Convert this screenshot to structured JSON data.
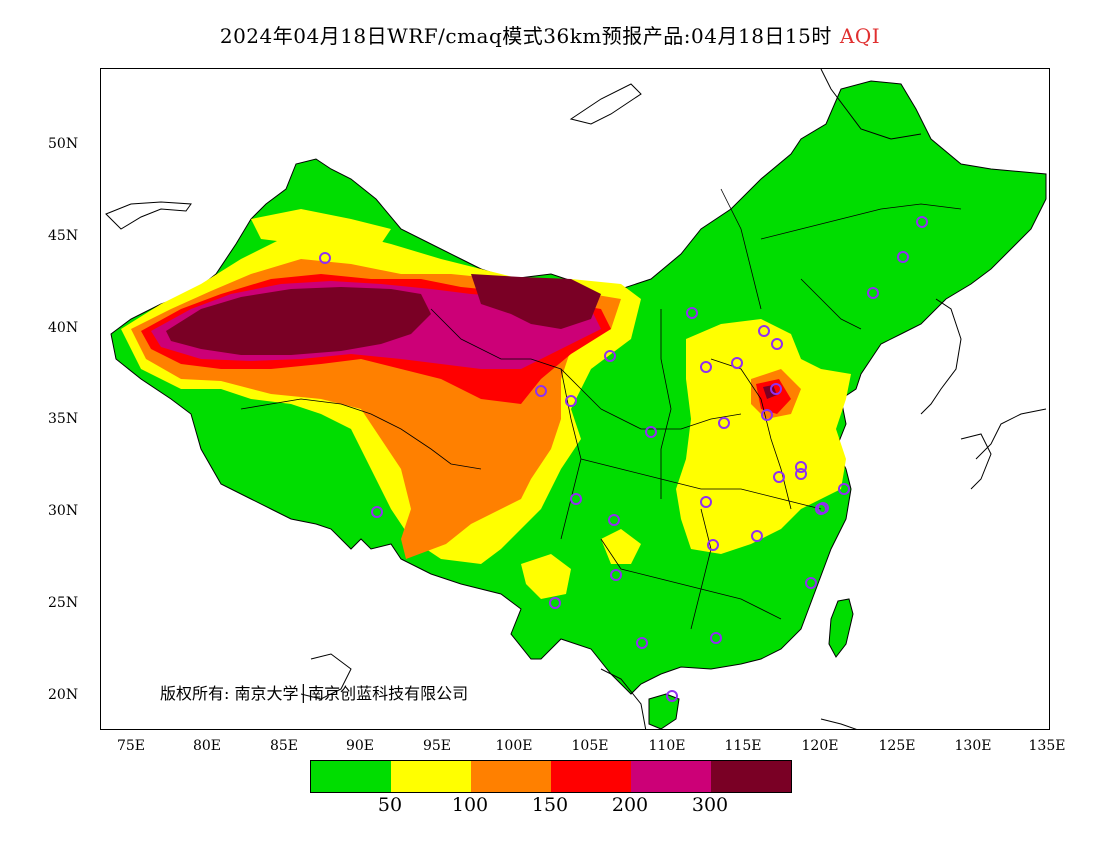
{
  "title": {
    "text": "2024年04月18日WRF/cmaq模式36km预报产品:04月18日15时",
    "variable": "AQI"
  },
  "map": {
    "lat_ticks": [
      "50N",
      "45N",
      "40N",
      "35N",
      "30N",
      "25N",
      "20N"
    ],
    "lon_ticks": [
      "75E",
      "80E",
      "85E",
      "90E",
      "95E",
      "100E",
      "105E",
      "110E",
      "115E",
      "120E",
      "125E",
      "130E",
      "135E"
    ],
    "copyright": "版权所有: 南京大学│南京创蓝科技有限公司",
    "colors": {
      "land_background": "#00dd00",
      "good": "#00dd00",
      "moderate": "#ffff00",
      "usg": "#ff8000",
      "unhealthy": "#ff0000",
      "very_unhealthy": "#cc0077",
      "hazardous": "#7a0025",
      "station_marker": "#9030f0"
    }
  },
  "legend": {
    "colors": [
      "#00dd00",
      "#ffff00",
      "#ff8000",
      "#ff0000",
      "#cc0077",
      "#7a0025"
    ],
    "labels": [
      "50",
      "100",
      "150",
      "200",
      "300"
    ]
  }
}
